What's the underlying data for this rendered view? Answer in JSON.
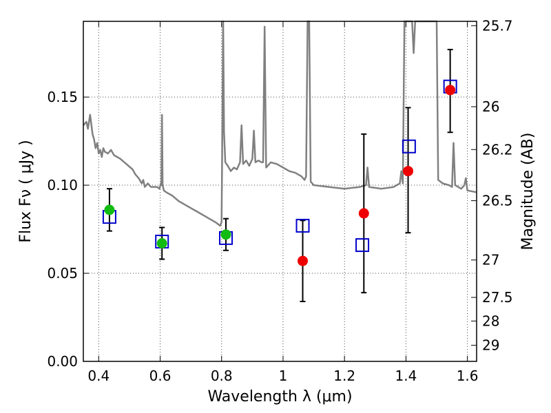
{
  "chart_data": {
    "type": "scatter",
    "xlabel": "Wavelength  λ (μm)",
    "ylabel": "Flux  Fν  ( μJy )",
    "ylabel_right": "Magnitude (AB)",
    "xlim": [
      0.35,
      1.63
    ],
    "ylim": [
      0.0,
      0.193
    ],
    "grid": true,
    "x_ticks": [
      0.4,
      0.6,
      0.8,
      1.0,
      1.2,
      1.4,
      1.6
    ],
    "x_tick_labels": [
      "0.4",
      "0.6",
      "0.8",
      "1",
      "1.2",
      "1.4",
      "1.6"
    ],
    "y_ticks": [
      0.0,
      0.05,
      0.1,
      0.15
    ],
    "y_tick_labels": [
      "0.00",
      "0.05",
      "0.10",
      "0.15"
    ],
    "right_ticks": [
      {
        "label": "25.7",
        "value": 25.7
      },
      {
        "label": "26",
        "value": 26.0
      },
      {
        "label": "26.2",
        "value": 26.2
      },
      {
        "label": "26.5",
        "value": 26.5
      },
      {
        "label": "27",
        "value": 27.0
      },
      {
        "label": "27.5",
        "value": 27.5
      },
      {
        "label": "28",
        "value": 28.0
      },
      {
        "label": "29",
        "value": 29.0
      }
    ],
    "colors": {
      "template": "#808080",
      "model": "#0000cc",
      "red": "#ee0000",
      "green": "#11bb11",
      "errorbar": "#000000",
      "grid": "#444444"
    },
    "series": [
      {
        "marker": "green-circle",
        "points": [
          {
            "x": 0.435,
            "y": 0.086,
            "err_low": 0.074,
            "err_high": 0.098
          },
          {
            "x": 0.606,
            "y": 0.067,
            "err_low": 0.058,
            "err_high": 0.076
          },
          {
            "x": 0.814,
            "y": 0.072,
            "err_low": 0.063,
            "err_high": 0.081
          }
        ]
      },
      {
        "marker": "red-circle",
        "points": [
          {
            "x": 1.064,
            "y": 0.057,
            "err_low": 0.034,
            "err_high": 0.08
          },
          {
            "x": 1.263,
            "y": 0.084,
            "err_low": 0.039,
            "err_high": 0.129
          },
          {
            "x": 1.407,
            "y": 0.108,
            "err_low": 0.073,
            "err_high": 0.144
          },
          {
            "x": 1.544,
            "y": 0.154,
            "err_low": 0.13,
            "err_high": 0.177
          }
        ]
      },
      {
        "marker": "blue-open-square",
        "points": [
          {
            "x": 0.435,
            "y": 0.082
          },
          {
            "x": 0.606,
            "y": 0.068
          },
          {
            "x": 0.814,
            "y": 0.07
          },
          {
            "x": 1.064,
            "y": 0.077
          },
          {
            "x": 1.258,
            "y": 0.066
          },
          {
            "x": 1.41,
            "y": 0.122
          },
          {
            "x": 1.544,
            "y": 0.156
          }
        ]
      },
      {
        "marker": "grey-line",
        "points": [
          [
            0.35,
            0.134
          ],
          [
            0.36,
            0.136
          ],
          [
            0.365,
            0.132
          ],
          [
            0.372,
            0.14
          ],
          [
            0.38,
            0.129
          ],
          [
            0.385,
            0.126
          ],
          [
            0.39,
            0.121
          ],
          [
            0.395,
            0.124
          ],
          [
            0.4,
            0.118
          ],
          [
            0.405,
            0.12
          ],
          [
            0.41,
            0.116
          ],
          [
            0.415,
            0.121
          ],
          [
            0.42,
            0.119
          ],
          [
            0.43,
            0.118
          ],
          [
            0.44,
            0.12
          ],
          [
            0.45,
            0.117
          ],
          [
            0.47,
            0.115
          ],
          [
            0.49,
            0.112
          ],
          [
            0.51,
            0.109
          ],
          [
            0.52,
            0.106
          ],
          [
            0.53,
            0.104
          ],
          [
            0.54,
            0.101
          ],
          [
            0.545,
            0.103
          ],
          [
            0.55,
            0.099
          ],
          [
            0.56,
            0.101
          ],
          [
            0.57,
            0.099
          ],
          [
            0.59,
            0.099
          ],
          [
            0.598,
            0.098
          ],
          [
            0.602,
            0.101
          ],
          [
            0.604,
            0.1
          ],
          [
            0.606,
            0.14
          ],
          [
            0.608,
            0.1
          ],
          [
            0.612,
            0.097
          ],
          [
            0.62,
            0.096
          ],
          [
            0.64,
            0.094
          ],
          [
            0.66,
            0.091
          ],
          [
            0.68,
            0.089
          ],
          [
            0.7,
            0.087
          ],
          [
            0.72,
            0.085
          ],
          [
            0.74,
            0.083
          ],
          [
            0.76,
            0.081
          ],
          [
            0.78,
            0.079
          ],
          [
            0.795,
            0.077
          ],
          [
            0.8,
            0.079
          ],
          [
            0.802,
            0.12
          ],
          [
            0.805,
            0.193
          ],
          [
            0.808,
            0.13
          ],
          [
            0.812,
            0.113
          ],
          [
            0.82,
            0.111
          ],
          [
            0.83,
            0.108
          ],
          [
            0.84,
            0.11
          ],
          [
            0.85,
            0.109
          ],
          [
            0.86,
            0.113
          ],
          [
            0.865,
            0.134
          ],
          [
            0.87,
            0.112
          ],
          [
            0.88,
            0.114
          ],
          [
            0.89,
            0.111
          ],
          [
            0.9,
            0.115
          ],
          [
            0.905,
            0.131
          ],
          [
            0.91,
            0.113
          ],
          [
            0.92,
            0.114
          ],
          [
            0.93,
            0.113
          ],
          [
            0.935,
            0.113
          ],
          [
            0.94,
            0.19
          ],
          [
            0.945,
            0.11
          ],
          [
            0.96,
            0.113
          ],
          [
            0.98,
            0.112
          ],
          [
            1.0,
            0.11
          ],
          [
            1.02,
            0.108
          ],
          [
            1.04,
            0.107
          ],
          [
            1.05,
            0.106
          ],
          [
            1.06,
            0.105
          ],
          [
            1.065,
            0.104
          ],
          [
            1.07,
            0.103
          ],
          [
            1.075,
            0.105
          ],
          [
            1.08,
            0.193
          ],
          [
            1.085,
            0.193
          ],
          [
            1.09,
            0.102
          ],
          [
            1.1,
            0.1
          ],
          [
            1.15,
            0.099
          ],
          [
            1.2,
            0.098
          ],
          [
            1.25,
            0.099
          ],
          [
            1.27,
            0.1
          ],
          [
            1.275,
            0.11
          ],
          [
            1.28,
            0.099
          ],
          [
            1.32,
            0.098
          ],
          [
            1.36,
            0.099
          ],
          [
            1.38,
            0.101
          ],
          [
            1.385,
            0.108
          ],
          [
            1.39,
            0.101
          ],
          [
            1.395,
            0.193
          ],
          [
            1.405,
            0.193
          ],
          [
            1.41,
            0.193
          ],
          [
            1.42,
            0.193
          ],
          [
            1.425,
            0.175
          ],
          [
            1.43,
            0.193
          ],
          [
            1.5,
            0.193
          ],
          [
            1.505,
            0.103
          ],
          [
            1.52,
            0.101
          ],
          [
            1.54,
            0.1
          ],
          [
            1.55,
            0.099
          ],
          [
            1.555,
            0.124
          ],
          [
            1.56,
            0.1
          ],
          [
            1.58,
            0.098
          ],
          [
            1.59,
            0.1
          ],
          [
            1.595,
            0.104
          ],
          [
            1.6,
            0.097
          ],
          [
            1.63,
            0.096
          ]
        ]
      }
    ]
  }
}
